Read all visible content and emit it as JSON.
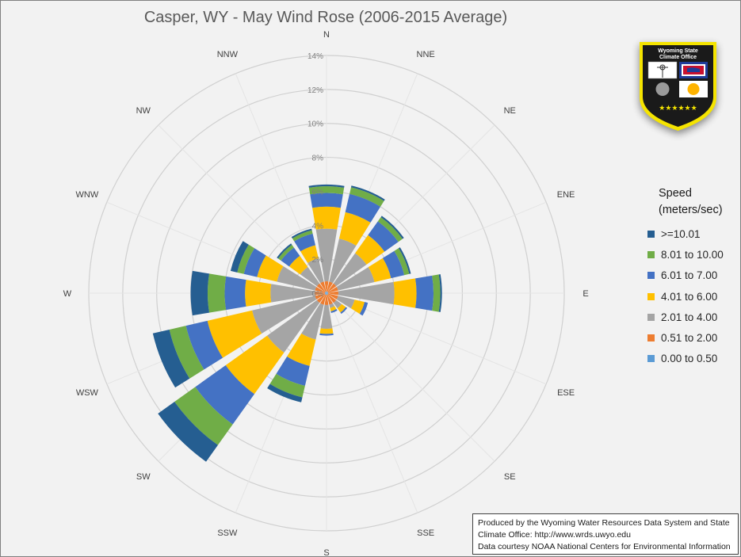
{
  "chart_data": {
    "type": "wind-rose (stacked polar bar)",
    "title": "Casper, WY - May Wind Rose (2006-2015 Average)",
    "radial_ticks": [
      "0%",
      "2%",
      "4%",
      "6%",
      "8%",
      "10%",
      "12%",
      "14%"
    ],
    "radial_max": 14,
    "directions": [
      "N",
      "NNE",
      "NE",
      "ENE",
      "E",
      "ESE",
      "SE",
      "SSE",
      "S",
      "SSW",
      "SW",
      "WSW",
      "W",
      "WNW",
      "NW",
      "NNW"
    ],
    "legend_title": "Speed\n(meters/sec)",
    "series": [
      {
        "name": "0.00 to 0.50",
        "color": "#5b9bd5",
        "values": [
          0.1,
          0.1,
          0.1,
          0.1,
          0.1,
          0.1,
          0.1,
          0.1,
          0.1,
          0.1,
          0.1,
          0.1,
          0.1,
          0.1,
          0.1,
          0.1
        ]
      },
      {
        "name": "0.51 to 2.00",
        "color": "#ed7d31",
        "values": [
          0.6,
          0.6,
          0.6,
          0.6,
          0.6,
          0.6,
          0.6,
          0.6,
          0.6,
          0.6,
          0.6,
          0.6,
          0.6,
          0.6,
          0.6,
          0.6
        ]
      },
      {
        "name": "2.01 to 4.00",
        "color": "#a5a5a5",
        "values": [
          3.1,
          2.6,
          2.2,
          2.2,
          3.3,
          1.0,
          0.4,
          0.2,
          1.4,
          2.1,
          3.6,
          3.8,
          2.6,
          2.3,
          1.2,
          1.4
        ]
      },
      {
        "name": "4.01 to 6.00",
        "color": "#ffc000",
        "values": [
          1.3,
          1.6,
          1.3,
          1.0,
          1.3,
          0.6,
          0.3,
          0.2,
          0.3,
          1.6,
          3.0,
          2.7,
          1.5,
          1.2,
          0.8,
          0.8
        ]
      },
      {
        "name": "6.01 to 7.00",
        "color": "#4472c4",
        "values": [
          0.8,
          1.1,
          1.0,
          0.8,
          1.0,
          0.2,
          0.1,
          0.1,
          0.1,
          1.2,
          2.2,
          1.3,
          1.2,
          0.8,
          0.6,
          0.7
        ]
      },
      {
        "name": "8.01 to 10.00",
        "color": "#70ad47",
        "values": [
          0.4,
          0.4,
          0.3,
          0.3,
          0.4,
          0.0,
          0.0,
          0.0,
          0.0,
          0.7,
          1.5,
          1.0,
          1.0,
          0.4,
          0.2,
          0.2
        ]
      },
      {
        "name": ">=10.01",
        "color": "#255e91",
        "values": [
          0.1,
          0.1,
          0.1,
          0.1,
          0.1,
          0.0,
          0.0,
          0.0,
          0.0,
          0.3,
          1.2,
          1.0,
          1.0,
          0.4,
          0.1,
          0.1
        ]
      }
    ],
    "legend_order": [
      ">=10.01",
      "8.01 to 10.00",
      "6.01 to 7.00",
      "4.01 to 6.00",
      "2.01 to 4.00",
      "0.51 to 2.00",
      "0.00 to 0.50"
    ]
  },
  "logo": {
    "text_line1": "Wyoming State",
    "text_line2": "Climate Office",
    "border_color": "#f5e400",
    "background_color": "#1a1a1a"
  },
  "credits": {
    "line1": "Produced by the Wyoming Water Resources Data System and State",
    "line2": "Climate Office: http://www.wrds.uwyo.edu",
    "line3": "Data courtesy NOAA National Centers for Environmental Information"
  }
}
